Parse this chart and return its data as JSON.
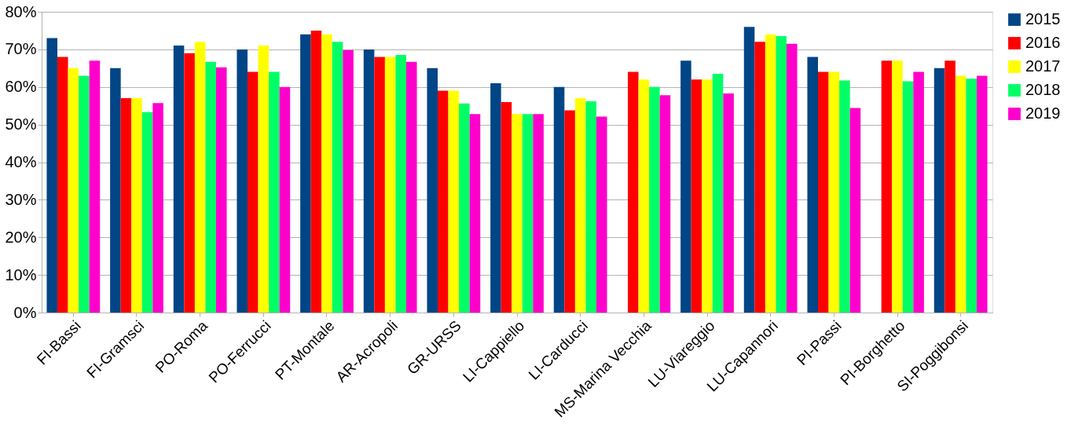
{
  "chart_data": {
    "type": "bar",
    "categories": [
      "FI-Bassi",
      "FI-Gramsci",
      "PO-Roma",
      "PO-Ferrucci",
      "PT-Montale",
      "AR-Acropoli",
      "GR-URSS",
      "LI-Cappiello",
      "LI-Carducci",
      "MS-Marina Vecchia",
      "LU-Viareggio",
      "LU-Capannori",
      "PI-Passi",
      "PI-Borghetto",
      "SI-Poggibonsi"
    ],
    "series": [
      {
        "name": "2015",
        "color": "#004586",
        "values": [
          73,
          65,
          71,
          70,
          74,
          70,
          65,
          61,
          60,
          null,
          67,
          76,
          68,
          null,
          65
        ]
      },
      {
        "name": "2016",
        "color": "#ff0000",
        "values": [
          68,
          57,
          69,
          64,
          75,
          68,
          59,
          56,
          53.8,
          64,
          62,
          72,
          64,
          67,
          67
        ]
      },
      {
        "name": "2017",
        "color": "#ffff00",
        "values": [
          65,
          57,
          72,
          71,
          74,
          68,
          59,
          52.8,
          57,
          62,
          62,
          74,
          64,
          67,
          63
        ]
      },
      {
        "name": "2018",
        "color": "#00ff66",
        "values": [
          63,
          53.3,
          66.7,
          64,
          72,
          68.5,
          55.6,
          52.8,
          56.2,
          60,
          63.5,
          73.5,
          61.7,
          61.5,
          62.2
        ]
      },
      {
        "name": "2019",
        "color": "#ff00cc",
        "values": [
          67,
          55.7,
          65.2,
          60,
          69.8,
          66.7,
          52.8,
          52.8,
          52.1,
          57.8,
          58.3,
          71.5,
          54.4,
          64,
          63
        ]
      }
    ],
    "ylim": [
      0,
      80
    ],
    "yticks": [
      {
        "value": 0,
        "label": "0%"
      },
      {
        "value": 10,
        "label": "10%"
      },
      {
        "value": 20,
        "label": "20%"
      },
      {
        "value": 30,
        "label": "30%"
      },
      {
        "value": 40,
        "label": "40%"
      },
      {
        "value": 50,
        "label": "50%"
      },
      {
        "value": 60,
        "label": "60%"
      },
      {
        "value": 70,
        "label": "70%"
      },
      {
        "value": 80,
        "label": "80%"
      }
    ],
    "grid": "y",
    "legend": "right"
  }
}
